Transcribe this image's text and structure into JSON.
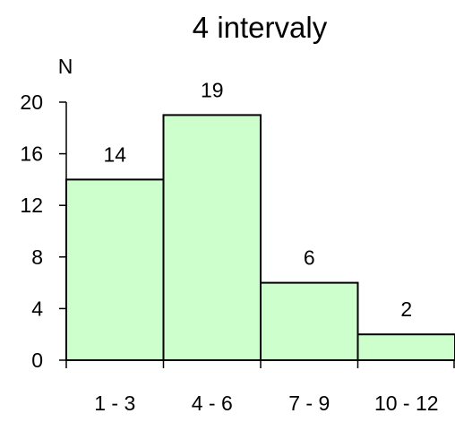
{
  "chart_data": {
    "type": "bar",
    "title": "4 intervaly",
    "ylabel": "N",
    "xlabel": "",
    "categories": [
      "1 - 3",
      "4 - 6",
      "7 - 9",
      "10 - 12"
    ],
    "values": [
      14,
      19,
      6,
      2
    ],
    "ylim": [
      0,
      20
    ],
    "yticks": [
      0,
      4,
      8,
      12,
      16,
      20
    ],
    "bar_color": "#ccffcc",
    "bar_edge_color": "#000000",
    "grid": false,
    "legend": "none",
    "data_labels": true
  }
}
